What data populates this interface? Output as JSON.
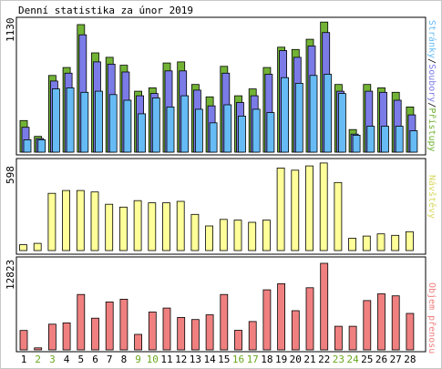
{
  "title": "Denní statistika za únor 2019",
  "colors": {
    "pristupy": "#72b336",
    "soubory": "#7b7be8",
    "stranky": "#66bbf5",
    "navstevy": "#ffff99",
    "objem": "#f08080",
    "weekend": "#6aa81e",
    "bar_outline": "#000000"
  },
  "chart_data": [
    {
      "type": "bar",
      "name": "hits-files-pages",
      "axis_max_label": "1130",
      "ylim": [
        0,
        1130
      ],
      "categories": [
        "1",
        "2",
        "3",
        "4",
        "5",
        "6",
        "7",
        "8",
        "9",
        "10",
        "11",
        "12",
        "13",
        "14",
        "15",
        "16",
        "17",
        "18",
        "19",
        "20",
        "21",
        "22",
        "23",
        "24",
        "25",
        "26",
        "27",
        "28"
      ],
      "weekend_days": [
        "2",
        "3",
        "9",
        "10",
        "16",
        "17",
        "23",
        "24"
      ],
      "legend": {
        "stranky": "Stránky",
        "soubory": "Soubory",
        "pristupy": "Přístupy",
        "sep1": "/",
        "sep2": "/"
      },
      "series": [
        {
          "name": "Přístupy",
          "color_key": "pristupy",
          "values": [
            280,
            140,
            680,
            750,
            1130,
            880,
            840,
            770,
            540,
            570,
            790,
            800,
            600,
            490,
            760,
            500,
            560,
            750,
            930,
            910,
            1000,
            1160,
            600,
            200,
            600,
            570,
            530,
            400
          ]
        },
        {
          "name": "Soubory",
          "color_key": "soubory",
          "values": [
            220,
            120,
            630,
            700,
            1040,
            800,
            780,
            710,
            500,
            520,
            720,
            720,
            550,
            410,
            700,
            440,
            500,
            690,
            900,
            840,
            940,
            1060,
            540,
            160,
            540,
            530,
            460,
            330
          ]
        },
        {
          "name": "Stránky",
          "color_key": "stranky",
          "values": [
            110,
            110,
            560,
            570,
            530,
            540,
            510,
            460,
            340,
            480,
            400,
            500,
            380,
            260,
            420,
            320,
            380,
            350,
            660,
            610,
            680,
            690,
            520,
            150,
            230,
            230,
            230,
            190
          ]
        }
      ]
    },
    {
      "type": "bar",
      "name": "visits",
      "axis_max_label": "598",
      "ylim": [
        0,
        598
      ],
      "legend": {
        "navstevy": "Návštěvy"
      },
      "series": [
        {
          "name": "Návštěvy",
          "color_key": "navstevy",
          "values": [
            40,
            50,
            395,
            415,
            415,
            405,
            320,
            300,
            345,
            330,
            330,
            340,
            250,
            170,
            215,
            210,
            195,
            210,
            570,
            555,
            585,
            605,
            470,
            85,
            100,
            115,
            105,
            130
          ]
        }
      ]
    },
    {
      "type": "bar",
      "name": "volume",
      "axis_max_label": "12823",
      "ylim": [
        0,
        12823
      ],
      "legend": {
        "objem": "Objem přenosu"
      },
      "series": [
        {
          "name": "Objem přenosu",
          "color_key": "objem",
          "values": [
            2880,
            300,
            3800,
            4000,
            8200,
            4700,
            7100,
            7500,
            2300,
            5600,
            6200,
            4800,
            4500,
            5200,
            8200,
            2900,
            4200,
            8900,
            9800,
            5800,
            9200,
            12823,
            3500,
            3500,
            7300,
            8300,
            8000,
            5400
          ]
        }
      ]
    }
  ]
}
